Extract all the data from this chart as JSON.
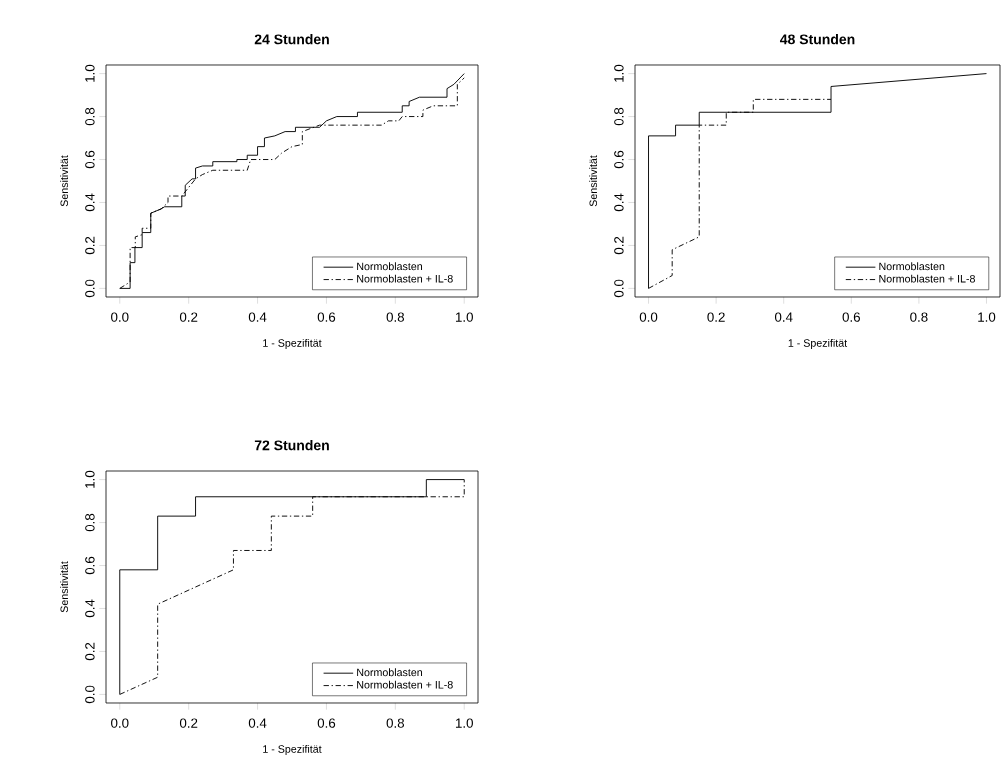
{
  "chart_data": [
    {
      "type": "line",
      "title": "24 Stunden",
      "xlabel": "1 - Spezifität",
      "ylabel": "Sensitivität",
      "xlim": [
        -0.04,
        1.04
      ],
      "ylim": [
        -0.04,
        1.04
      ],
      "xticks": [
        {
          "value": 0,
          "label": "0.0"
        },
        {
          "value": 0.2,
          "label": "0.2"
        },
        {
          "value": 0.4,
          "label": "0.4"
        },
        {
          "value": 0.6,
          "label": "0.6"
        },
        {
          "value": 0.8,
          "label": "0.8"
        },
        {
          "value": 1,
          "label": "1.0"
        }
      ],
      "yticks": [
        {
          "value": 0,
          "label": "0.0"
        },
        {
          "value": 0.2,
          "label": "0.2"
        },
        {
          "value": 0.4,
          "label": "0.4"
        },
        {
          "value": 0.6,
          "label": "0.6"
        },
        {
          "value": 0.8,
          "label": "0.8"
        },
        {
          "value": 1,
          "label": "1.0"
        }
      ],
      "legend": "bottom right",
      "grid": false,
      "marker": "none",
      "series": [
        {
          "name": "Normoblasten",
          "color": "#000000",
          "line_style": "solid",
          "x": [
            0,
            0.03,
            0.03,
            0.044,
            0.044,
            0.065,
            0.065,
            0.09,
            0.09,
            0.12,
            0.13,
            0.18,
            0.18,
            0.19,
            0.19,
            0.21,
            0.22,
            0.22,
            0.24,
            0.27,
            0.27,
            0.34,
            0.34,
            0.37,
            0.37,
            0.4,
            0.4,
            0.42,
            0.42,
            0.45,
            0.48,
            0.51,
            0.51,
            0.58,
            0.6,
            0.63,
            0.69,
            0.69,
            0.82,
            0.82,
            0.84,
            0.84,
            0.87,
            0.95,
            0.95,
            0.97,
            1.0
          ],
          "values": [
            0,
            0,
            0.12,
            0.12,
            0.19,
            0.19,
            0.26,
            0.26,
            0.35,
            0.37,
            0.38,
            0.38,
            0.43,
            0.43,
            0.48,
            0.51,
            0.51,
            0.56,
            0.57,
            0.57,
            0.59,
            0.59,
            0.6,
            0.6,
            0.62,
            0.62,
            0.66,
            0.66,
            0.7,
            0.71,
            0.73,
            0.73,
            0.75,
            0.75,
            0.78,
            0.8,
            0.8,
            0.82,
            0.82,
            0.85,
            0.85,
            0.87,
            0.89,
            0.89,
            0.93,
            0.95,
            1.0
          ]
        },
        {
          "name": "Normoblasten + IL-8",
          "color": "#000000",
          "line_style": "dashed",
          "x": [
            0,
            0.03,
            0.03,
            0.045,
            0.045,
            0.065,
            0.065,
            0.09,
            0.09,
            0.12,
            0.14,
            0.14,
            0.18,
            0.2,
            0.22,
            0.24,
            0.27,
            0.37,
            0.38,
            0.45,
            0.47,
            0.5,
            0.53,
            0.53,
            0.58,
            0.76,
            0.78,
            0.81,
            0.82,
            0.88,
            0.88,
            0.91,
            0.98,
            0.98,
            1.0
          ],
          "values": [
            0,
            0.03,
            0.19,
            0.19,
            0.24,
            0.25,
            0.28,
            0.28,
            0.35,
            0.37,
            0.4,
            0.43,
            0.43,
            0.47,
            0.51,
            0.53,
            0.55,
            0.55,
            0.6,
            0.6,
            0.63,
            0.66,
            0.67,
            0.73,
            0.76,
            0.76,
            0.78,
            0.78,
            0.8,
            0.8,
            0.83,
            0.85,
            0.85,
            0.95,
            0.98
          ]
        }
      ]
    },
    {
      "type": "line",
      "title": "48 Stunden",
      "xlabel": "1 - Spezifität",
      "ylabel": "Sensitivität",
      "xlim": [
        -0.04,
        1.04
      ],
      "ylim": [
        -0.04,
        1.04
      ],
      "xticks": [
        {
          "value": 0,
          "label": "0.0"
        },
        {
          "value": 0.2,
          "label": "0.2"
        },
        {
          "value": 0.4,
          "label": "0.4"
        },
        {
          "value": 0.6,
          "label": "0.6"
        },
        {
          "value": 0.8,
          "label": "0.8"
        },
        {
          "value": 1,
          "label": "1.0"
        }
      ],
      "yticks": [
        {
          "value": 0,
          "label": "0.0"
        },
        {
          "value": 0.2,
          "label": "0.2"
        },
        {
          "value": 0.4,
          "label": "0.4"
        },
        {
          "value": 0.6,
          "label": "0.6"
        },
        {
          "value": 0.8,
          "label": "0.8"
        },
        {
          "value": 1,
          "label": "1.0"
        }
      ],
      "legend": "bottom right",
      "grid": false,
      "marker": "none",
      "series": [
        {
          "name": "Normoblasten",
          "color": "#000000",
          "line_style": "solid",
          "x": [
            0,
            0,
            0.08,
            0.08,
            0.15,
            0.15,
            0.54,
            0.54,
            1.0
          ],
          "values": [
            0,
            0.71,
            0.71,
            0.76,
            0.76,
            0.82,
            0.82,
            0.94,
            1.0
          ]
        },
        {
          "name": "Normoblasten + IL-8",
          "color": "#000000",
          "line_style": "dashed",
          "x": [
            0,
            0.07,
            0.07,
            0.15,
            0.15,
            0.23,
            0.23,
            0.31,
            0.31,
            0.54
          ],
          "values": [
            0,
            0.06,
            0.18,
            0.24,
            0.76,
            0.76,
            0.82,
            0.82,
            0.88,
            0.88
          ]
        }
      ]
    },
    {
      "type": "line",
      "title": "72 Stunden",
      "xlabel": "1 - Spezifität",
      "ylabel": "Sensitivität",
      "xlim": [
        -0.04,
        1.04
      ],
      "ylim": [
        -0.04,
        1.04
      ],
      "xticks": [
        {
          "value": 0,
          "label": "0.0"
        },
        {
          "value": 0.2,
          "label": "0.2"
        },
        {
          "value": 0.4,
          "label": "0.4"
        },
        {
          "value": 0.6,
          "label": "0.6"
        },
        {
          "value": 0.8,
          "label": "0.8"
        },
        {
          "value": 1,
          "label": "1.0"
        }
      ],
      "yticks": [
        {
          "value": 0,
          "label": "0.0"
        },
        {
          "value": 0.2,
          "label": "0.2"
        },
        {
          "value": 0.4,
          "label": "0.4"
        },
        {
          "value": 0.6,
          "label": "0.6"
        },
        {
          "value": 0.8,
          "label": "0.8"
        },
        {
          "value": 1,
          "label": "1.0"
        }
      ],
      "legend": "bottom right",
      "grid": false,
      "marker": "none",
      "series": [
        {
          "name": "Normoblasten",
          "color": "#000000",
          "line_style": "solid",
          "x": [
            0,
            0,
            0.11,
            0.11,
            0.22,
            0.22,
            0.89,
            0.89,
            1.0
          ],
          "values": [
            0,
            0.58,
            0.58,
            0.83,
            0.83,
            0.92,
            0.92,
            1.0,
            1.0
          ]
        },
        {
          "name": "Normoblasten + IL-8",
          "color": "#000000",
          "line_style": "dashed",
          "x": [
            0,
            0.11,
            0.11,
            0.22,
            0.33,
            0.33,
            0.44,
            0.44,
            0.56,
            0.56,
            1.0,
            1.0
          ],
          "values": [
            0,
            0.08,
            0.42,
            0.5,
            0.58,
            0.67,
            0.67,
            0.83,
            0.83,
            0.92,
            0.92,
            1.0
          ]
        }
      ]
    }
  ]
}
